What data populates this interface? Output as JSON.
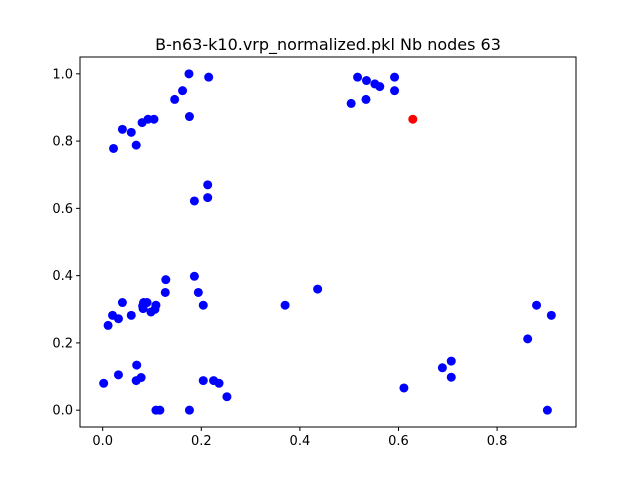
{
  "chart_data": {
    "type": "scatter",
    "title": "B-n63-k10.vrp_normalized.pkl Nb nodes 63",
    "xlabel": "",
    "ylabel": "",
    "xlim": [
      -0.046,
      0.96
    ],
    "ylim": [
      -0.05,
      1.05
    ],
    "xticks": [
      0.0,
      0.2,
      0.4,
      0.6,
      0.8
    ],
    "xtick_labels": [
      "0.0",
      "0.2",
      "0.4",
      "0.6",
      "0.8"
    ],
    "yticks": [
      0.0,
      0.2,
      0.4,
      0.6,
      0.8,
      1.0
    ],
    "ytick_labels": [
      "0.0",
      "0.2",
      "0.4",
      "0.6",
      "0.8",
      "1.0"
    ],
    "grid": false,
    "series": [
      {
        "color": "#0000ff",
        "points": [
          [
            0.175,
            1.0
          ],
          [
            0.215,
            0.99
          ],
          [
            0.162,
            0.95
          ],
          [
            0.146,
            0.924
          ],
          [
            0.176,
            0.873
          ],
          [
            0.092,
            0.865
          ],
          [
            0.104,
            0.865
          ],
          [
            0.08,
            0.855
          ],
          [
            0.04,
            0.835
          ],
          [
            0.058,
            0.826
          ],
          [
            0.068,
            0.788
          ],
          [
            0.022,
            0.778
          ],
          [
            0.517,
            0.99
          ],
          [
            0.535,
            0.98
          ],
          [
            0.552,
            0.97
          ],
          [
            0.562,
            0.962
          ],
          [
            0.592,
            0.99
          ],
          [
            0.592,
            0.95
          ],
          [
            0.534,
            0.924
          ],
          [
            0.504,
            0.912
          ],
          [
            0.213,
            0.67
          ],
          [
            0.213,
            0.632
          ],
          [
            0.186,
            0.622
          ],
          [
            0.128,
            0.388
          ],
          [
            0.127,
            0.35
          ],
          [
            0.186,
            0.398
          ],
          [
            0.194,
            0.35
          ],
          [
            0.204,
            0.312
          ],
          [
            0.04,
            0.32
          ],
          [
            0.083,
            0.32
          ],
          [
            0.09,
            0.32
          ],
          [
            0.081,
            0.31
          ],
          [
            0.108,
            0.312
          ],
          [
            0.106,
            0.3
          ],
          [
            0.082,
            0.302
          ],
          [
            0.098,
            0.292
          ],
          [
            0.058,
            0.282
          ],
          [
            0.02,
            0.282
          ],
          [
            0.032,
            0.272
          ],
          [
            0.011,
            0.252
          ],
          [
            0.37,
            0.312
          ],
          [
            0.436,
            0.36
          ],
          [
            0.069,
            0.134
          ],
          [
            0.078,
            0.097
          ],
          [
            0.068,
            0.088
          ],
          [
            0.032,
            0.105
          ],
          [
            0.002,
            0.08
          ],
          [
            0.204,
            0.088
          ],
          [
            0.225,
            0.088
          ],
          [
            0.236,
            0.08
          ],
          [
            0.252,
            0.04
          ],
          [
            0.108,
            0.0
          ],
          [
            0.116,
            0.0
          ],
          [
            0.176,
            0.0
          ],
          [
            0.611,
            0.066
          ],
          [
            0.689,
            0.126
          ],
          [
            0.707,
            0.146
          ],
          [
            0.707,
            0.098
          ],
          [
            0.862,
            0.212
          ],
          [
            0.88,
            0.312
          ],
          [
            0.91,
            0.282
          ],
          [
            0.902,
            0.0
          ]
        ]
      },
      {
        "color": "#ff0000",
        "points": [
          [
            0.629,
            0.865
          ]
        ]
      }
    ]
  }
}
